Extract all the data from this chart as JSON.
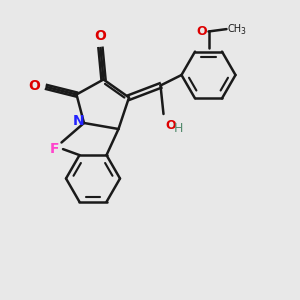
{
  "background_color": "#e8e8e8",
  "bond_color": "#1a1a1a",
  "N_color": "#2222ff",
  "O_color": "#dd0000",
  "F_color": "#ff44cc",
  "OH_color": "#558b6e",
  "lw": 1.8,
  "xlim": [
    0,
    10
  ],
  "ylim": [
    0,
    10
  ],
  "figsize": [
    3.0,
    3.0
  ],
  "dpi": 100
}
